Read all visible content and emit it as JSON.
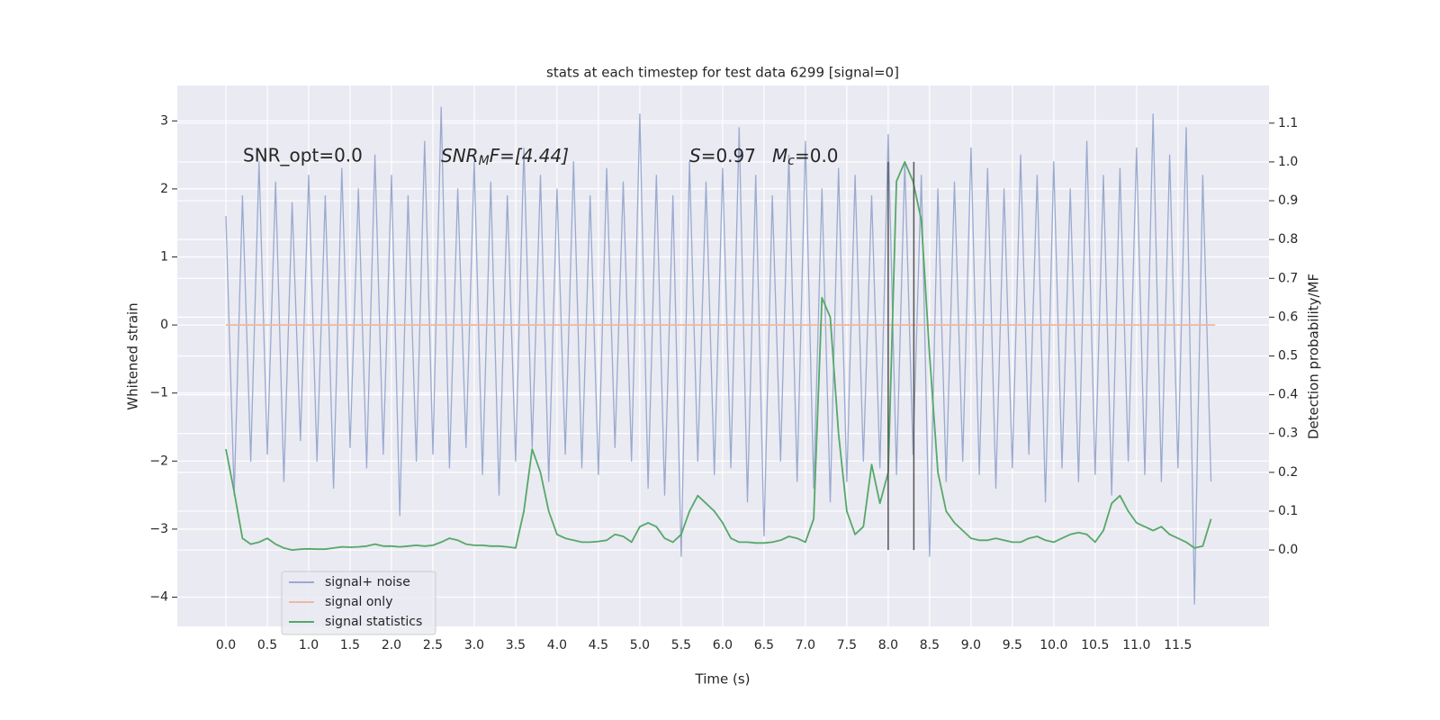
{
  "chart_data": {
    "type": "line",
    "title": "stats at each timestep for test data 6299 [signal=0]",
    "x_label": "Time (s)",
    "y_label": "Whitened strain",
    "y2_label": "Detection probability/MF",
    "annotations": {
      "snr_opt": "SNR_opt=0.0",
      "snr_mf": [
        "SNR",
        "M",
        "F=[4.44]"
      ],
      "s": [
        "S",
        "=0.97"
      ],
      "mc": [
        "M",
        "c",
        "=0.0"
      ]
    },
    "xlim": [
      -0.587,
      12.6
    ],
    "ylim": [
      -4.43,
      3.52
    ],
    "y2lim": [
      -0.197,
      1.197
    ],
    "xticks": [
      {
        "value": 0,
        "label": "0.0"
      },
      0.5,
      {
        "value": 1,
        "label": "1.0"
      },
      1.5,
      {
        "value": 2,
        "label": "2.0"
      },
      2.5,
      {
        "value": 3,
        "label": "3.0"
      },
      3.5,
      {
        "value": 4,
        "label": "4.0"
      },
      4.5,
      {
        "value": 5,
        "label": "5.0"
      },
      5.5,
      {
        "value": 6,
        "label": "6.0"
      },
      6.5,
      {
        "value": 7,
        "label": "7.0"
      },
      7.5,
      {
        "value": 8,
        "label": "8.0"
      },
      8.5,
      {
        "value": 9,
        "label": "9.0"
      },
      9.5,
      {
        "value": 10,
        "label": "10.0"
      },
      10.5,
      {
        "value": 11,
        "label": "11.0"
      },
      11.5
    ],
    "yticks": [
      {
        "value": -4,
        "label": "−4"
      },
      {
        "value": -3,
        "label": "−3"
      },
      {
        "value": -2,
        "label": "−2"
      },
      {
        "value": -1,
        "label": "−1"
      },
      0,
      1,
      2,
      3
    ],
    "y2ticks": [
      {
        "value": 0,
        "label": "0.0"
      },
      0.1,
      0.2,
      0.3,
      0.4,
      0.5,
      0.6,
      0.7,
      0.8,
      0.9,
      {
        "value": 1,
        "label": "1.0"
      },
      1.1
    ],
    "grid": true,
    "legend": "lower left",
    "vlines": {
      "x": [
        8.0,
        8.31
      ],
      "y2": [
        0.0,
        1.0
      ],
      "color": "#555555"
    },
    "series": [
      {
        "name": "signal+ noise",
        "color": "#9aaacf",
        "x": [
          0.0,
          0.1,
          0.2,
          0.3,
          0.4,
          0.5,
          0.6,
          0.7,
          0.8,
          0.9,
          1.0,
          1.1,
          1.2,
          1.3,
          1.4,
          1.5,
          1.6,
          1.7,
          1.8,
          1.9,
          2.0,
          2.1,
          2.2,
          2.3,
          2.4,
          2.5,
          2.6,
          2.7,
          2.8,
          2.9,
          3.0,
          3.1,
          3.2,
          3.3,
          3.4,
          3.5,
          3.6,
          3.7,
          3.8,
          3.9,
          4.0,
          4.1,
          4.2,
          4.3,
          4.4,
          4.5,
          4.6,
          4.7,
          4.8,
          4.9,
          5.0,
          5.1,
          5.2,
          5.3,
          5.4,
          5.5,
          5.6,
          5.7,
          5.8,
          5.9,
          6.0,
          6.1,
          6.2,
          6.3,
          6.4,
          6.5,
          6.6,
          6.7,
          6.8,
          6.9,
          7.0,
          7.1,
          7.2,
          7.3,
          7.4,
          7.5,
          7.6,
          7.7,
          7.8,
          7.9,
          8.0,
          8.1,
          8.2,
          8.3,
          8.4,
          8.5,
          8.6,
          8.7,
          8.8,
          8.9,
          9.0,
          9.1,
          9.2,
          9.3,
          9.4,
          9.5,
          9.6,
          9.7,
          9.8,
          9.9,
          10.0,
          10.1,
          10.2,
          10.3,
          10.4,
          10.5,
          10.6,
          10.7,
          10.8,
          10.9,
          11.0,
          11.1,
          11.2,
          11.3,
          11.4,
          11.5,
          11.6,
          11.7,
          11.8,
          11.9
        ],
        "values": [
          1.6,
          -2.5,
          1.9,
          -2.0,
          2.4,
          -1.9,
          2.1,
          -2.3,
          1.8,
          -1.7,
          2.2,
          -2.0,
          1.9,
          -2.4,
          2.3,
          -1.8,
          2.0,
          -2.1,
          2.5,
          -1.9,
          2.2,
          -2.8,
          1.9,
          -2.0,
          2.7,
          -1.9,
          3.2,
          -2.1,
          2.0,
          -1.8,
          2.4,
          -2.2,
          2.1,
          -2.5,
          1.9,
          -2.0,
          2.6,
          -1.8,
          2.2,
          -2.3,
          2.0,
          -1.9,
          2.4,
          -2.1,
          1.9,
          -2.2,
          2.3,
          -1.8,
          2.1,
          -2.0,
          3.1,
          -2.4,
          2.2,
          -2.5,
          1.9,
          -3.4,
          2.4,
          -2.0,
          2.1,
          -2.2,
          2.3,
          -2.1,
          2.9,
          -2.6,
          2.2,
          -3.1,
          1.9,
          -2.0,
          2.5,
          -2.3,
          2.7,
          -2.4,
          2.0,
          -2.6,
          2.3,
          -2.3,
          2.2,
          -2.0,
          1.9,
          -2.1,
          2.8,
          -2.2,
          2.4,
          -1.9,
          2.2,
          -3.4,
          2.0,
          -2.3,
          2.1,
          -2.0,
          2.6,
          -2.2,
          2.3,
          -2.4,
          2.0,
          -2.1,
          2.5,
          -1.9,
          2.2,
          -2.6,
          2.4,
          -2.1,
          2.0,
          -2.3,
          2.7,
          -2.2,
          2.2,
          -2.5,
          2.3,
          -2.0,
          2.6,
          -2.2,
          3.1,
          -2.3,
          2.5,
          -2.1,
          2.9,
          -4.1,
          2.2,
          -2.3
        ]
      },
      {
        "name": "signal only",
        "color": "#eeb9a0",
        "x": [
          0.0,
          11.95
        ],
        "values": [
          0.0,
          0.0
        ]
      },
      {
        "name": "signal statistics",
        "color": "#55a868",
        "axis": "y2",
        "x": [
          0.0,
          0.1,
          0.2,
          0.3,
          0.4,
          0.5,
          0.6,
          0.7,
          0.8,
          0.9,
          1.0,
          1.1,
          1.2,
          1.3,
          1.4,
          1.5,
          1.6,
          1.7,
          1.8,
          1.9,
          2.0,
          2.1,
          2.2,
          2.3,
          2.4,
          2.5,
          2.6,
          2.7,
          2.8,
          2.9,
          3.0,
          3.1,
          3.2,
          3.3,
          3.4,
          3.5,
          3.6,
          3.7,
          3.8,
          3.9,
          4.0,
          4.1,
          4.2,
          4.3,
          4.4,
          4.5,
          4.6,
          4.7,
          4.8,
          4.9,
          5.0,
          5.1,
          5.2,
          5.3,
          5.4,
          5.5,
          5.6,
          5.7,
          5.8,
          5.9,
          6.0,
          6.1,
          6.2,
          6.3,
          6.4,
          6.5,
          6.6,
          6.7,
          6.8,
          6.9,
          7.0,
          7.1,
          7.2,
          7.3,
          7.4,
          7.5,
          7.6,
          7.7,
          7.8,
          7.9,
          8.0,
          8.1,
          8.2,
          8.3,
          8.4,
          8.5,
          8.6,
          8.7,
          8.8,
          8.9,
          9.0,
          9.1,
          9.2,
          9.3,
          9.4,
          9.5,
          9.6,
          9.7,
          9.8,
          9.9,
          10.0,
          10.1,
          10.2,
          10.3,
          10.4,
          10.5,
          10.6,
          10.7,
          10.8,
          10.9,
          11.0,
          11.1,
          11.2,
          11.3,
          11.4,
          11.5,
          11.6,
          11.7,
          11.8,
          11.9
        ],
        "values": [
          0.26,
          0.15,
          0.03,
          0.015,
          0.02,
          0.03,
          0.015,
          0.005,
          0.0,
          0.002,
          0.003,
          0.002,
          0.002,
          0.005,
          0.008,
          0.007,
          0.008,
          0.01,
          0.015,
          0.01,
          0.01,
          0.008,
          0.01,
          0.012,
          0.01,
          0.012,
          0.02,
          0.03,
          0.025,
          0.015,
          0.012,
          0.012,
          0.01,
          0.01,
          0.008,
          0.005,
          0.1,
          0.26,
          0.2,
          0.1,
          0.04,
          0.03,
          0.025,
          0.02,
          0.02,
          0.022,
          0.025,
          0.04,
          0.035,
          0.02,
          0.06,
          0.07,
          0.06,
          0.03,
          0.02,
          0.04,
          0.1,
          0.14,
          0.12,
          0.1,
          0.07,
          0.03,
          0.02,
          0.02,
          0.018,
          0.018,
          0.02,
          0.025,
          0.035,
          0.03,
          0.02,
          0.08,
          0.65,
          0.6,
          0.3,
          0.1,
          0.04,
          0.06,
          0.22,
          0.12,
          0.2,
          0.95,
          1.0,
          0.95,
          0.85,
          0.5,
          0.2,
          0.1,
          0.07,
          0.05,
          0.03,
          0.025,
          0.025,
          0.03,
          0.025,
          0.02,
          0.02,
          0.03,
          0.035,
          0.025,
          0.02,
          0.03,
          0.04,
          0.045,
          0.04,
          0.02,
          0.05,
          0.12,
          0.14,
          0.1,
          0.07,
          0.06,
          0.05,
          0.06,
          0.04,
          0.03,
          0.02,
          0.005,
          0.01,
          0.08
        ]
      }
    ]
  }
}
